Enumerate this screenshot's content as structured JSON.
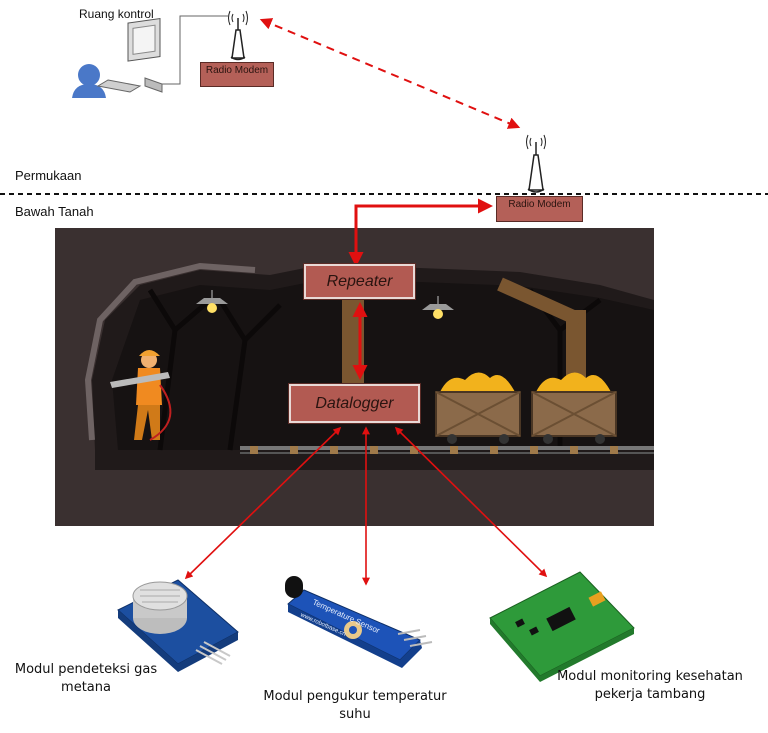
{
  "labels": {
    "control_room": "Ruang kontrol",
    "surface": "Permukaan",
    "underground": "Bawah Tanah"
  },
  "modems": {
    "top": "Radio Modem",
    "surface": "Radio Modem"
  },
  "blocks": {
    "repeater": "Repeater",
    "datalogger": "Datalogger"
  },
  "modules": {
    "gas": "Modul pendeteksi gas metana",
    "temperature": "Modul pengukur temperatur suhu",
    "health": "Modul monitoring kesehatan pekerja tambang"
  },
  "sensor_board_text": {
    "temperature_board": "Temperature Sensor",
    "temperature_url": "www.robotbase.cn"
  },
  "colors": {
    "arrow": "#e01010",
    "mine_bg": "#3a3030",
    "block_fill": "#b25a52",
    "gas_board": "#1c4fa0",
    "health_board": "#2e9a3a"
  }
}
